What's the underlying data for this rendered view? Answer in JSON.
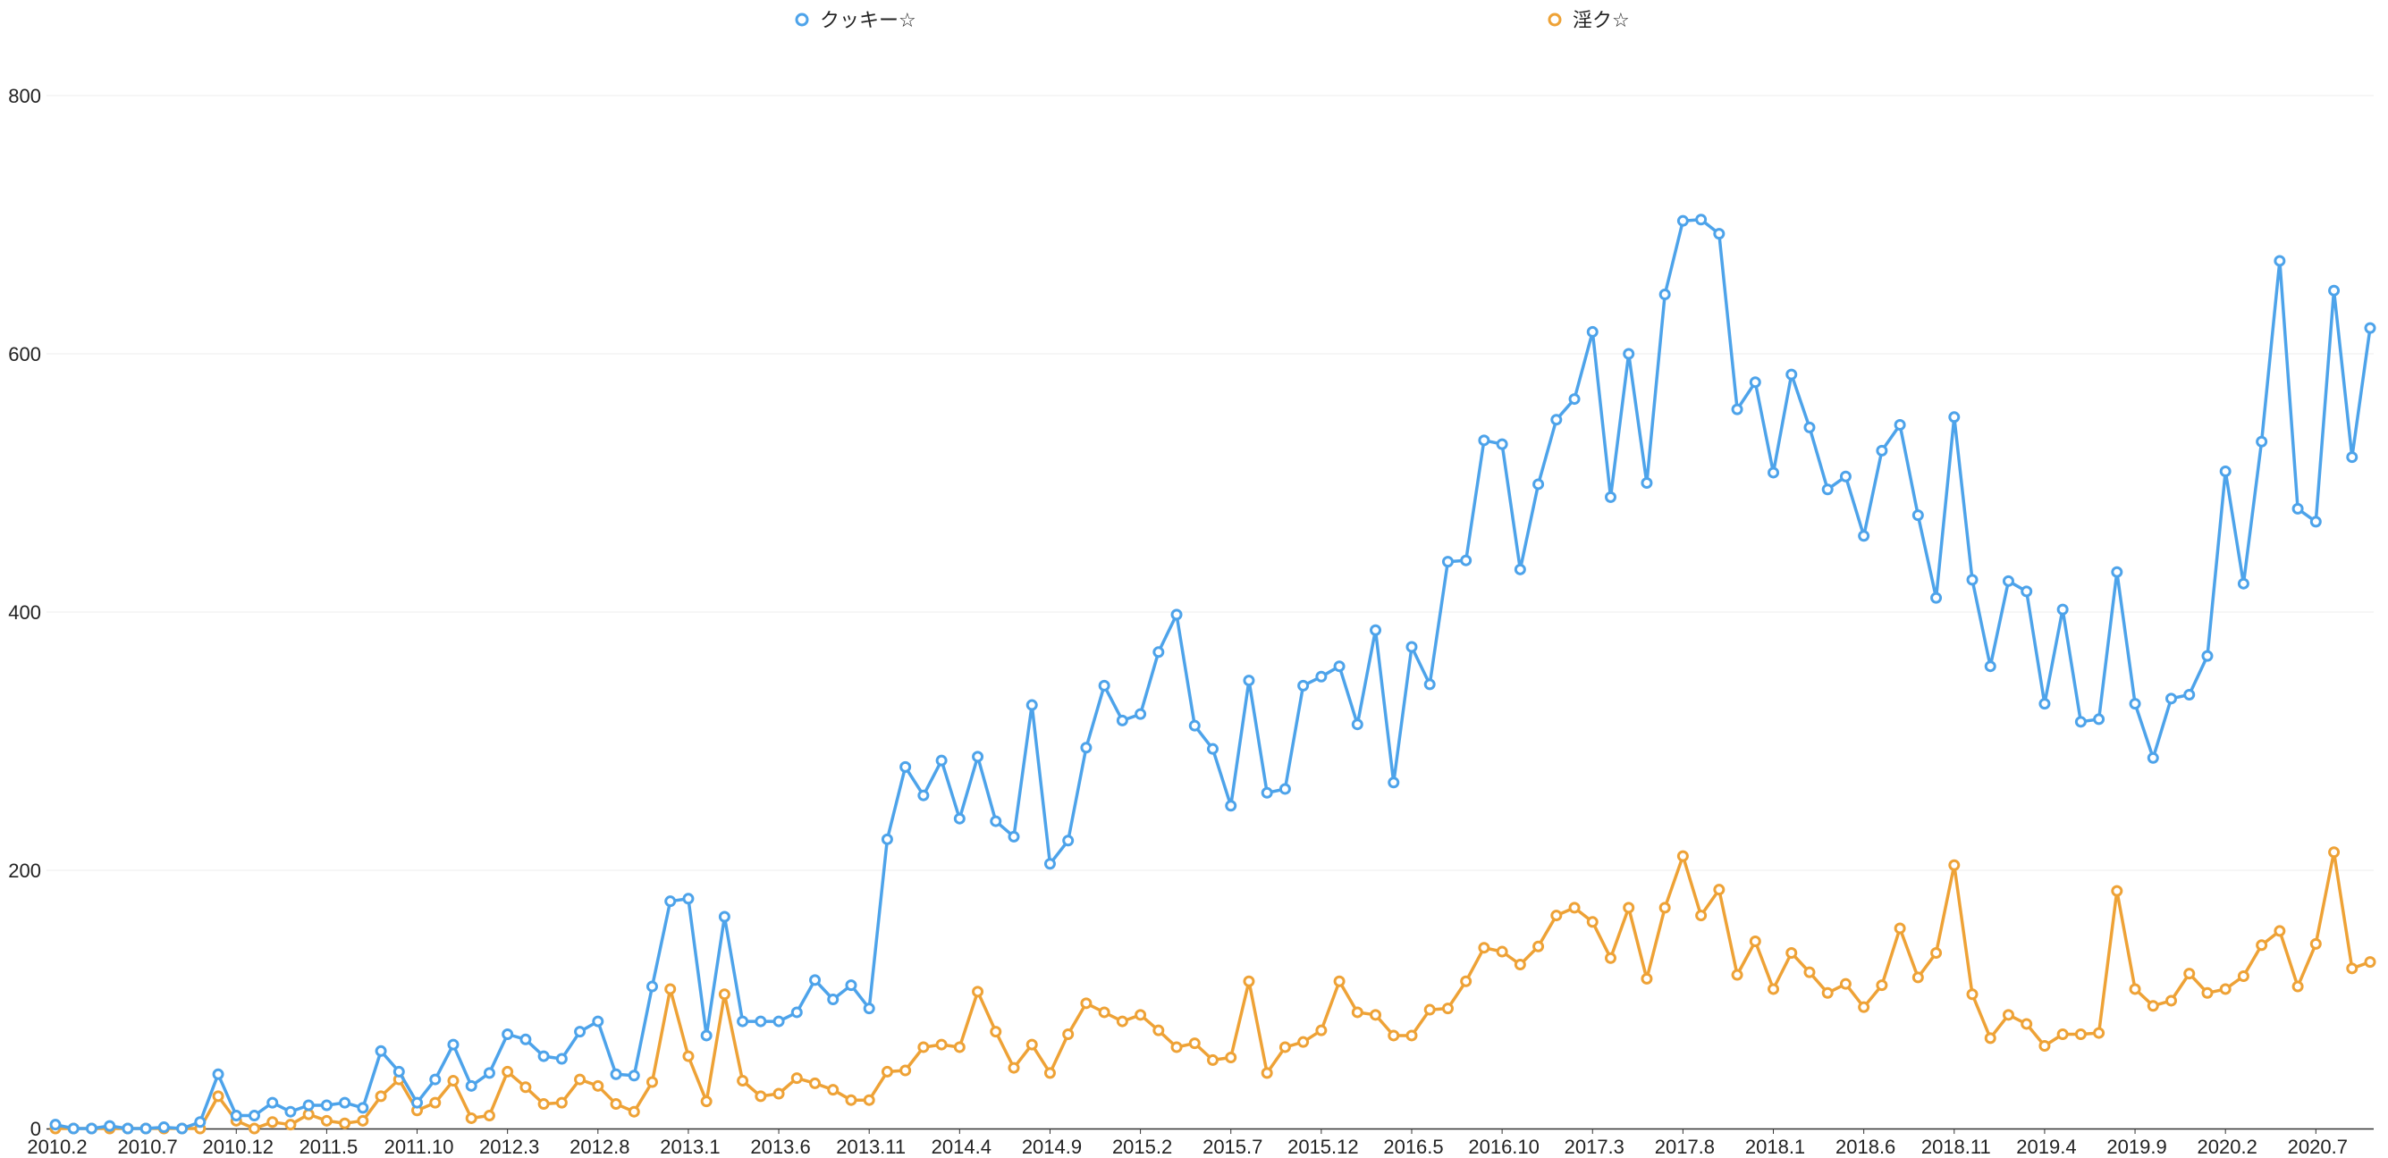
{
  "chart_data": {
    "type": "line",
    "title": "",
    "xlabel": "",
    "ylabel": "",
    "ylim": [
      0,
      800
    ],
    "yticks": [
      0,
      200,
      400,
      600,
      800
    ],
    "grid": "horizontal",
    "legend_position": "top",
    "x_start": "2010.2",
    "xtick_labels": [
      "2010.2",
      "2010.7",
      "2010.12",
      "2011.5",
      "2011.10",
      "2012.3",
      "2012.8",
      "2013.1",
      "2013.6",
      "2013.11",
      "2014.4",
      "2014.9",
      "2015.2",
      "2015.7",
      "2015.12",
      "2016.5",
      "2016.10",
      "2017.3",
      "2017.8",
      "2018.1",
      "2018.6",
      "2018.11",
      "2019.4",
      "2019.9",
      "2020.2",
      "2020.7"
    ],
    "series": [
      {
        "name": "クッキー☆",
        "color": "#4da3ea",
        "values": [
          3,
          0,
          0,
          2,
          0,
          0,
          1,
          0,
          5,
          42,
          10,
          10,
          20,
          13,
          18,
          18,
          20,
          16,
          60,
          44,
          20,
          38,
          65,
          33,
          43,
          73,
          69,
          56,
          54,
          75,
          83,
          42,
          41,
          110,
          176,
          178,
          72,
          164,
          83,
          83,
          83,
          90,
          115,
          100,
          111,
          93,
          224,
          280,
          258,
          285,
          240,
          288,
          238,
          226,
          328,
          205,
          223,
          295,
          343,
          316,
          321,
          369,
          398,
          312,
          294,
          250,
          347,
          260,
          263,
          343,
          350,
          358,
          313,
          386,
          268,
          373,
          344,
          439,
          440,
          533,
          530,
          433,
          499,
          549,
          565,
          617,
          489,
          600,
          500,
          646,
          703,
          704,
          693,
          557,
          578,
          508,
          584,
          543,
          495,
          505,
          459,
          525,
          545,
          475,
          411,
          551,
          425,
          358,
          424,
          416,
          329,
          402,
          315,
          317,
          431,
          329,
          287,
          333,
          336,
          366,
          509,
          422,
          532,
          672,
          480,
          470,
          649,
          520,
          620
        ]
      },
      {
        "name": "淫ク☆",
        "color": "#eea236",
        "values": [
          0,
          0,
          0,
          0,
          0,
          0,
          0,
          0,
          0,
          25,
          6,
          0,
          5,
          3,
          11,
          6,
          4,
          6,
          25,
          38,
          14,
          20,
          37,
          8,
          10,
          44,
          32,
          19,
          20,
          38,
          33,
          19,
          13,
          36,
          108,
          56,
          21,
          104,
          37,
          25,
          27,
          39,
          35,
          30,
          22,
          22,
          44,
          45,
          63,
          65,
          63,
          106,
          75,
          47,
          65,
          43,
          73,
          97,
          90,
          83,
          88,
          76,
          63,
          66,
          53,
          55,
          114,
          43,
          63,
          67,
          76,
          114,
          90,
          88,
          72,
          72,
          92,
          93,
          114,
          140,
          137,
          127,
          141,
          165,
          171,
          160,
          132,
          171,
          116,
          171,
          211,
          165,
          185,
          119,
          145,
          108,
          136,
          121,
          105,
          112,
          94,
          111,
          155,
          117,
          136,
          204,
          104,
          70,
          88,
          81,
          64,
          73,
          73,
          74,
          184,
          108,
          95,
          99,
          120,
          105,
          108,
          118,
          142,
          153,
          110,
          143,
          214,
          124,
          129
        ]
      }
    ]
  }
}
